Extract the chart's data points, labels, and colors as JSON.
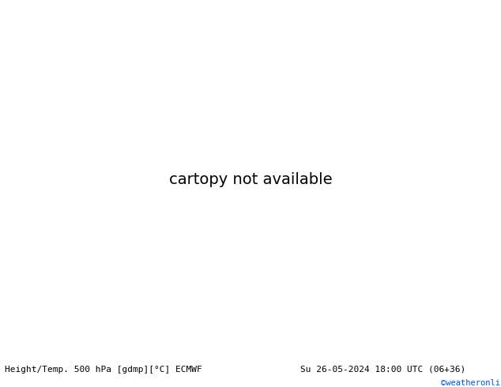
{
  "title_left": "Height/Temp. 500 hPa [gdmp][°C] ECMWF",
  "title_right": "Su 26-05-2024 18:00 UTC (06+36)",
  "credit": "©weatheronline.co.uk",
  "ocean_color": "#c8ccd0",
  "land_color": "#d4d8c8",
  "australia_color": "#c8e8a0",
  "fig_width": 6.34,
  "fig_height": 4.9,
  "dpi": 100,
  "label_color": "#000000",
  "credit_color": "#0055cc",
  "font_size_title": 8.0,
  "font_size_credit": 7.5,
  "extent": [
    60,
    210,
    -67,
    22
  ]
}
